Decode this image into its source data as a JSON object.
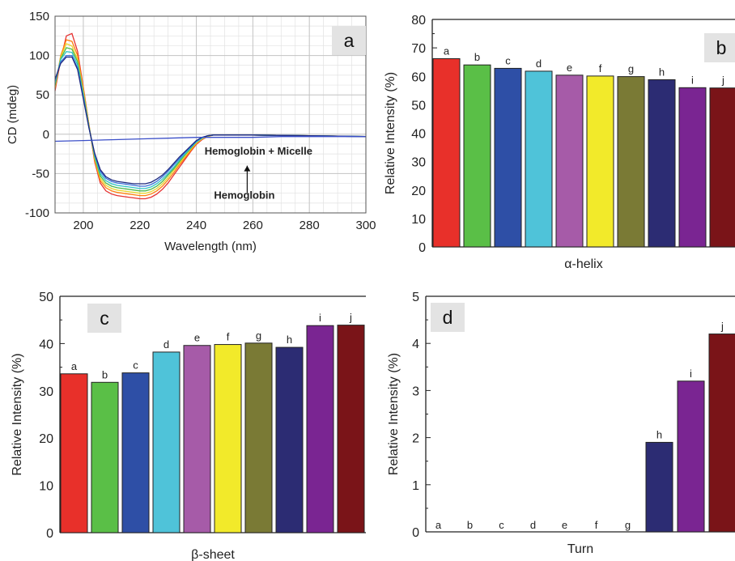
{
  "chart_data": [
    {
      "panel": "a",
      "type": "line",
      "xlabel": "Wavelength (nm)",
      "ylabel": "CD (mdeg)",
      "xlim": [
        190,
        300
      ],
      "ylim": [
        -100,
        150
      ],
      "xticks": [
        200,
        220,
        240,
        260,
        280,
        300
      ],
      "yticks": [
        -100,
        -50,
        0,
        50,
        100,
        150
      ],
      "grid": true,
      "annotations": [
        "Hemoglobin + Micelle",
        "Hemoglobin"
      ],
      "series": [
        {
          "color": "#e63232",
          "x": [
            190,
            192,
            194,
            196,
            198,
            200,
            202,
            204,
            206,
            208,
            210,
            212,
            214,
            216,
            218,
            220,
            222,
            224,
            226,
            228,
            230,
            232,
            234,
            236,
            238,
            240,
            242,
            244,
            246,
            248,
            250,
            260,
            280,
            300
          ],
          "y": [
            55,
            95,
            125,
            128,
            105,
            60,
            12,
            -35,
            -62,
            -72,
            -76,
            -78,
            -79,
            -80,
            -81,
            -82,
            -82,
            -80,
            -76,
            -70,
            -62,
            -52,
            -42,
            -32,
            -22,
            -13,
            -7,
            -3,
            -1,
            -1,
            -1,
            -1,
            -2,
            -3
          ]
        },
        {
          "color": "#ff7f0e",
          "x": [
            190,
            192,
            194,
            196,
            198,
            200,
            202,
            204,
            206,
            208,
            210,
            212,
            214,
            216,
            218,
            220,
            222,
            224,
            226,
            228,
            230,
            232,
            234,
            236,
            238,
            240,
            242,
            244,
            246,
            248,
            250,
            260,
            280,
            300
          ],
          "y": [
            58,
            100,
            120,
            118,
            100,
            58,
            12,
            -33,
            -59,
            -68,
            -72,
            -74,
            -75,
            -76,
            -77,
            -78,
            -78,
            -76,
            -72,
            -66,
            -58,
            -49,
            -39,
            -30,
            -21,
            -12,
            -6,
            -3,
            -1,
            -1,
            -1,
            -1,
            -2,
            -3
          ]
        },
        {
          "color": "#e8d630",
          "x": [
            190,
            192,
            194,
            196,
            198,
            200,
            202,
            204,
            206,
            208,
            210,
            212,
            214,
            216,
            218,
            220,
            222,
            224,
            226,
            228,
            230,
            232,
            234,
            236,
            238,
            240,
            242,
            244,
            246,
            248,
            250,
            260,
            280,
            300
          ],
          "y": [
            60,
            98,
            115,
            112,
            95,
            55,
            11,
            -31,
            -56,
            -65,
            -69,
            -71,
            -72,
            -73,
            -74,
            -75,
            -75,
            -73,
            -69,
            -63,
            -55,
            -46,
            -37,
            -28,
            -19,
            -11,
            -6,
            -3,
            -1,
            -1,
            -1,
            -1,
            -2,
            -3
          ]
        },
        {
          "color": "#4cb84c",
          "x": [
            190,
            192,
            194,
            196,
            198,
            200,
            202,
            204,
            206,
            208,
            210,
            212,
            214,
            216,
            218,
            220,
            222,
            224,
            226,
            228,
            230,
            232,
            234,
            236,
            238,
            240,
            242,
            244,
            246,
            248,
            250,
            260,
            280,
            300
          ],
          "y": [
            62,
            96,
            110,
            108,
            92,
            52,
            10,
            -29,
            -53,
            -62,
            -66,
            -68,
            -69,
            -70,
            -71,
            -72,
            -72,
            -70,
            -66,
            -60,
            -52,
            -44,
            -35,
            -26,
            -18,
            -10,
            -5,
            -2,
            -1,
            -1,
            -1,
            -1,
            -2,
            -3
          ]
        },
        {
          "color": "#2ec4c4",
          "x": [
            190,
            192,
            194,
            196,
            198,
            200,
            202,
            204,
            206,
            208,
            210,
            212,
            214,
            216,
            218,
            220,
            222,
            224,
            226,
            228,
            230,
            232,
            234,
            236,
            238,
            240,
            242,
            244,
            246,
            248,
            250,
            260,
            280,
            300
          ],
          "y": [
            65,
            95,
            105,
            104,
            88,
            50,
            9,
            -27,
            -50,
            -59,
            -63,
            -65,
            -66,
            -67,
            -68,
            -69,
            -69,
            -67,
            -63,
            -57,
            -50,
            -42,
            -33,
            -25,
            -17,
            -10,
            -5,
            -2,
            -1,
            -1,
            -1,
            -1,
            -2,
            -3
          ]
        },
        {
          "color": "#3a6fd8",
          "x": [
            190,
            192,
            194,
            196,
            198,
            200,
            202,
            204,
            206,
            208,
            210,
            212,
            214,
            216,
            218,
            220,
            222,
            224,
            226,
            228,
            230,
            232,
            234,
            236,
            238,
            240,
            242,
            244,
            246,
            248,
            250,
            260,
            280,
            300
          ],
          "y": [
            68,
            92,
            100,
            100,
            84,
            47,
            8,
            -25,
            -47,
            -56,
            -60,
            -62,
            -63,
            -64,
            -65,
            -66,
            -66,
            -64,
            -60,
            -54,
            -47,
            -39,
            -31,
            -23,
            -16,
            -9,
            -4,
            -2,
            -1,
            -1,
            -1,
            -1,
            -2,
            -3
          ]
        },
        {
          "color": "#1f2a80",
          "x": [
            190,
            192,
            194,
            196,
            198,
            200,
            202,
            204,
            206,
            208,
            210,
            212,
            214,
            216,
            218,
            220,
            222,
            224,
            226,
            228,
            230,
            232,
            234,
            236,
            238,
            240,
            242,
            244,
            246,
            248,
            250,
            260,
            280,
            300
          ],
          "y": [
            70,
            90,
            98,
            98,
            82,
            45,
            8,
            -24,
            -45,
            -54,
            -58,
            -60,
            -61,
            -62,
            -63,
            -63,
            -63,
            -61,
            -57,
            -52,
            -45,
            -37,
            -29,
            -22,
            -15,
            -8,
            -4,
            -2,
            -1,
            -1,
            -1,
            -1,
            -2,
            -3
          ]
        },
        {
          "color": "#3b4fc8",
          "x": [
            190,
            200,
            210,
            220,
            230,
            240,
            250,
            260,
            270,
            280,
            290,
            300
          ],
          "y": [
            -9,
            -8,
            -7,
            -6,
            -5,
            -4,
            -4,
            -4,
            -3,
            -3,
            -3,
            -3
          ]
        }
      ]
    },
    {
      "panel": "b",
      "type": "bar",
      "xlabel": "α-helix",
      "ylabel": "Relative Intensity (%)",
      "ylim": [
        0,
        80
      ],
      "yticks": [
        0,
        10,
        20,
        30,
        40,
        50,
        60,
        70,
        80
      ],
      "categories": [
        "a",
        "b",
        "c",
        "d",
        "e",
        "f",
        "g",
        "h",
        "i",
        "j"
      ],
      "values": [
        66.2,
        64.0,
        62.8,
        61.8,
        60.4,
        60.1,
        59.9,
        58.8,
        56.0,
        55.9
      ]
    },
    {
      "panel": "c",
      "type": "bar",
      "xlabel": "β-sheet",
      "ylabel": "Relative Intensity (%)",
      "ylim": [
        0,
        50
      ],
      "yticks": [
        0,
        10,
        20,
        30,
        40,
        50
      ],
      "categories": [
        "a",
        "b",
        "c",
        "d",
        "e",
        "f",
        "g",
        "h",
        "i",
        "j"
      ],
      "values": [
        33.6,
        31.8,
        33.8,
        38.2,
        39.6,
        39.8,
        40.1,
        39.2,
        43.8,
        43.9
      ]
    },
    {
      "panel": "d",
      "type": "bar",
      "xlabel": "Turn",
      "ylabel": "Relative Intensity (%)",
      "ylim": [
        0,
        5
      ],
      "yticks": [
        0,
        1,
        2,
        3,
        4,
        5
      ],
      "categories": [
        "a",
        "b",
        "c",
        "d",
        "e",
        "f",
        "g",
        "h",
        "i",
        "j"
      ],
      "values": [
        0,
        0,
        0,
        0,
        0,
        0,
        0,
        1.9,
        3.2,
        4.2
      ]
    }
  ],
  "bar_colors": [
    "#e8302a",
    "#5abf47",
    "#2e4fa6",
    "#4fc3d9",
    "#a65ba8",
    "#f2ea2a",
    "#7a7a35",
    "#2c2c73",
    "#7a2592",
    "#7a1418"
  ],
  "panel_labels": {
    "a": "a",
    "b": "b",
    "c": "c",
    "d": "d"
  }
}
